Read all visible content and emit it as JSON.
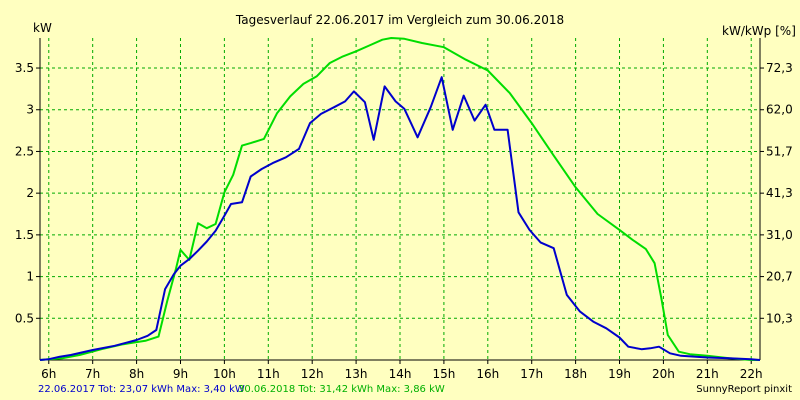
{
  "chart_data": {
    "type": "line",
    "title": "Tagesverlauf 22.06.2017 im Vergleich zum 30.06.2018",
    "ylabel_left": "kW",
    "ylabel_right": "kW/kWp [%]",
    "xlim": [
      5.8,
      22.2
    ],
    "ylim": [
      0,
      3.86
    ],
    "grid": true,
    "x_ticks": [
      {
        "x": 6,
        "label": "6h"
      },
      {
        "x": 7,
        "label": "7h"
      },
      {
        "x": 8,
        "label": "8h"
      },
      {
        "x": 9,
        "label": "9h"
      },
      {
        "x": 10,
        "label": "10h"
      },
      {
        "x": 11,
        "label": "11h"
      },
      {
        "x": 12,
        "label": "12h"
      },
      {
        "x": 13,
        "label": "13h"
      },
      {
        "x": 14,
        "label": "14h"
      },
      {
        "x": 15,
        "label": "15h"
      },
      {
        "x": 16,
        "label": "16h"
      },
      {
        "x": 17,
        "label": "17h"
      },
      {
        "x": 18,
        "label": "18h"
      },
      {
        "x": 19,
        "label": "19h"
      },
      {
        "x": 20,
        "label": "20h"
      },
      {
        "x": 21,
        "label": "21h"
      },
      {
        "x": 22,
        "label": "22h"
      }
    ],
    "y_ticks_left": [
      {
        "y": 0.5,
        "label": "0.5"
      },
      {
        "y": 1,
        "label": "1"
      },
      {
        "y": 1.5,
        "label": "1.5"
      },
      {
        "y": 2,
        "label": "2"
      },
      {
        "y": 2.5,
        "label": "2.5"
      },
      {
        "y": 3,
        "label": "3"
      },
      {
        "y": 3.5,
        "label": "3.5"
      }
    ],
    "y_ticks_right": [
      {
        "y": 0.5,
        "label": "10,3"
      },
      {
        "y": 1,
        "label": "20,7"
      },
      {
        "y": 1.5,
        "label": "31,0"
      },
      {
        "y": 2,
        "label": "41,3"
      },
      {
        "y": 2.5,
        "label": "51,7"
      },
      {
        "y": 3,
        "label": "62,0"
      },
      {
        "y": 3.5,
        "label": "72,3"
      }
    ],
    "series": [
      {
        "name": "22.06.2017",
        "color": "#0000cc",
        "points": [
          [
            5.8,
            0.0
          ],
          [
            6.0,
            0.01
          ],
          [
            6.25,
            0.04
          ],
          [
            6.5,
            0.06
          ],
          [
            7.0,
            0.12
          ],
          [
            7.5,
            0.17
          ],
          [
            8.0,
            0.24
          ],
          [
            8.25,
            0.29
          ],
          [
            8.45,
            0.36
          ],
          [
            8.65,
            0.85
          ],
          [
            8.85,
            1.03
          ],
          [
            9.0,
            1.13
          ],
          [
            9.2,
            1.21
          ],
          [
            9.4,
            1.31
          ],
          [
            9.6,
            1.42
          ],
          [
            9.8,
            1.55
          ],
          [
            10.0,
            1.73
          ],
          [
            10.15,
            1.87
          ],
          [
            10.4,
            1.89
          ],
          [
            10.6,
            2.2
          ],
          [
            10.85,
            2.29
          ],
          [
            11.1,
            2.36
          ],
          [
            11.4,
            2.43
          ],
          [
            11.7,
            2.53
          ],
          [
            11.95,
            2.84
          ],
          [
            12.2,
            2.95
          ],
          [
            12.5,
            3.03
          ],
          [
            12.75,
            3.1
          ],
          [
            12.95,
            3.22
          ],
          [
            13.2,
            3.09
          ],
          [
            13.4,
            2.64
          ],
          [
            13.65,
            3.28
          ],
          [
            13.9,
            3.1
          ],
          [
            14.1,
            3.01
          ],
          [
            14.4,
            2.67
          ],
          [
            14.7,
            3.03
          ],
          [
            14.95,
            3.39
          ],
          [
            15.2,
            2.76
          ],
          [
            15.45,
            3.17
          ],
          [
            15.7,
            2.87
          ],
          [
            15.95,
            3.06
          ],
          [
            16.15,
            2.76
          ],
          [
            16.45,
            2.76
          ],
          [
            16.7,
            1.77
          ],
          [
            16.95,
            1.56
          ],
          [
            17.2,
            1.41
          ],
          [
            17.5,
            1.34
          ],
          [
            17.8,
            0.78
          ],
          [
            18.1,
            0.58
          ],
          [
            18.4,
            0.46
          ],
          [
            18.7,
            0.38
          ],
          [
            19.0,
            0.27
          ],
          [
            19.2,
            0.16
          ],
          [
            19.5,
            0.13
          ],
          [
            19.7,
            0.14
          ],
          [
            19.9,
            0.16
          ],
          [
            20.15,
            0.08
          ],
          [
            20.4,
            0.05
          ],
          [
            21.0,
            0.03
          ],
          [
            21.5,
            0.02
          ],
          [
            22.0,
            0.01
          ],
          [
            22.2,
            0.0
          ]
        ]
      },
      {
        "name": "30.06.2018",
        "color": "#00dd00",
        "points": [
          [
            5.8,
            0.0
          ],
          [
            6.0,
            0.01
          ],
          [
            6.3,
            0.02
          ],
          [
            6.7,
            0.06
          ],
          [
            7.2,
            0.13
          ],
          [
            7.7,
            0.19
          ],
          [
            8.2,
            0.23
          ],
          [
            8.5,
            0.28
          ],
          [
            8.7,
            0.71
          ],
          [
            8.9,
            1.1
          ],
          [
            9.0,
            1.32
          ],
          [
            9.2,
            1.2
          ],
          [
            9.4,
            1.64
          ],
          [
            9.6,
            1.58
          ],
          [
            9.8,
            1.63
          ],
          [
            10.0,
            2.01
          ],
          [
            10.2,
            2.22
          ],
          [
            10.4,
            2.57
          ],
          [
            10.6,
            2.6
          ],
          [
            10.9,
            2.65
          ],
          [
            11.2,
            2.96
          ],
          [
            11.5,
            3.16
          ],
          [
            11.8,
            3.31
          ],
          [
            12.1,
            3.4
          ],
          [
            12.4,
            3.56
          ],
          [
            12.7,
            3.64
          ],
          [
            13.0,
            3.7
          ],
          [
            13.3,
            3.77
          ],
          [
            13.6,
            3.84
          ],
          [
            13.8,
            3.86
          ],
          [
            14.1,
            3.85
          ],
          [
            14.5,
            3.8
          ],
          [
            15.0,
            3.75
          ],
          [
            15.5,
            3.6
          ],
          [
            16.0,
            3.47
          ],
          [
            16.5,
            3.2
          ],
          [
            17.0,
            2.84
          ],
          [
            17.5,
            2.45
          ],
          [
            18.0,
            2.07
          ],
          [
            18.5,
            1.75
          ],
          [
            19.0,
            1.56
          ],
          [
            19.3,
            1.44
          ],
          [
            19.6,
            1.33
          ],
          [
            19.8,
            1.16
          ],
          [
            19.95,
            0.75
          ],
          [
            20.1,
            0.3
          ],
          [
            20.35,
            0.1
          ],
          [
            20.6,
            0.07
          ],
          [
            21.0,
            0.05
          ],
          [
            21.5,
            0.02
          ],
          [
            22.0,
            0.0
          ],
          [
            22.2,
            0.0
          ]
        ]
      }
    ]
  },
  "footer": {
    "stats_2017": "22.06.2017 Tot: 23,07 kWh Max: 3,40 kW",
    "stats_2018": "30.06.2018 Tot: 31,42 kWh Max: 3,86 kW",
    "credit": "SunnyReport pinxit"
  }
}
